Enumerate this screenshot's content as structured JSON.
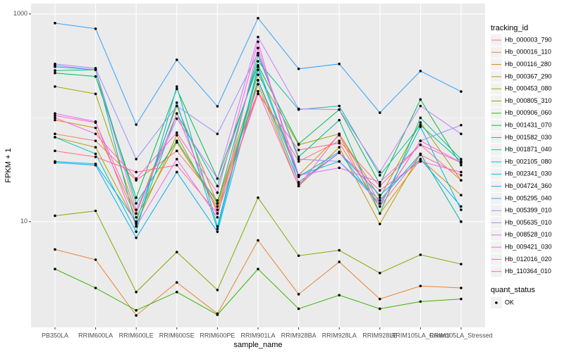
{
  "chart_data": {
    "type": "line",
    "x_label": "sample_name",
    "y_label": "FPKM + 1",
    "log_y": true,
    "grid": true,
    "ylim": [
      0.96,
      1260
    ],
    "yticks": [
      10,
      1000
    ],
    "y_minor_ticks": [
      100
    ],
    "legend_title": "tracking_id",
    "legend_position": "right",
    "point_color": "#000000",
    "point_legend_title": "quant_status",
    "point_legend_labels": [
      "OK"
    ],
    "categories": [
      "PB350LA",
      "RRIM600LA",
      "RRIM600LE",
      "RRIM600SE",
      "RRIM600PE",
      "RRIM901LA",
      "RRIM928BA",
      "RRIM928LA",
      "RRIM928LE",
      "RRIM105LA_Control",
      "RRIM105LA_Stressed"
    ],
    "series": [
      {
        "name": "Hb_000003_790",
        "color": "#F8766D",
        "values": [
          70,
          60,
          25,
          48,
          16,
          180,
          38,
          60,
          22,
          55,
          25
        ]
      },
      {
        "name": "Hb_000016_110",
        "color": "#EA8331",
        "values": [
          5.4,
          4.3,
          1.25,
          2.6,
          1.3,
          6.6,
          2.0,
          4.1,
          1.8,
          2.4,
          2.3
        ]
      },
      {
        "name": "Hb_000116_280",
        "color": "#D89000",
        "values": [
          95,
          80,
          11,
          58,
          14,
          230,
          28,
          68,
          12,
          40,
          18
        ]
      },
      {
        "name": "Hb_000367_290",
        "color": "#C09B00",
        "values": [
          65,
          52,
          9.5,
          68,
          13,
          210,
          22,
          52,
          9.5,
          45,
          10
        ]
      },
      {
        "name": "Hb_000453_080",
        "color": "#A3A500",
        "values": [
          200,
          170,
          12,
          130,
          15,
          260,
          55,
          70,
          17,
          90,
          25
        ]
      },
      {
        "name": "Hb_000805_310",
        "color": "#7CAE00",
        "values": [
          11.4,
          12.7,
          2.1,
          5.1,
          2.2,
          17,
          4.7,
          5.3,
          3.2,
          4.8,
          3.9
        ]
      },
      {
        "name": "Hb_000906_060",
        "color": "#39B600",
        "values": [
          3.5,
          2.3,
          1.4,
          2.1,
          1.27,
          3.5,
          1.45,
          1.96,
          1.45,
          1.7,
          1.8
        ]
      },
      {
        "name": "Hb_001431_070",
        "color": "#00BB4E",
        "values": [
          270,
          250,
          17,
          190,
          26,
          320,
          56,
          120,
          23,
          150,
          35
        ]
      },
      {
        "name": "Hb_001582_030",
        "color": "#00BF7D",
        "values": [
          285,
          290,
          15,
          60,
          15,
          400,
          42,
          95,
          12,
          100,
          40
        ]
      },
      {
        "name": "Hb_001871_040",
        "color": "#00C1A3",
        "values": [
          310,
          290,
          9,
          110,
          22,
          350,
          120,
          130,
          28,
          85,
          38
        ]
      },
      {
        "name": "Hb_002105_080",
        "color": "#00BFC4",
        "values": [
          65,
          45,
          8,
          200,
          9,
          310,
          28,
          38,
          16,
          45,
          10
        ]
      },
      {
        "name": "Hb_002341_030",
        "color": "#00BAE0",
        "values": [
          38,
          36,
          10,
          140,
          8.5,
          290,
          27,
          47,
          14,
          82,
          13
        ]
      },
      {
        "name": "Hb_004724_360",
        "color": "#00B0F6",
        "values": [
          37,
          35,
          7,
          30,
          8,
          230,
          24,
          46,
          18,
          40,
          14
        ]
      },
      {
        "name": "Hb_005295_040",
        "color": "#35A2FF",
        "values": [
          816,
          721,
          86,
          362,
          129,
          910,
          296,
          330,
          112,
          282,
          179
        ]
      },
      {
        "name": "Hb_005399_010",
        "color": "#9590FF",
        "values": [
          330,
          300,
          40,
          130,
          70,
          420,
          40,
          38,
          15,
          60,
          85
        ]
      },
      {
        "name": "Hb_005635_010",
        "color": "#C77CFF",
        "values": [
          320,
          290,
          13,
          98,
          26,
          600,
          122,
          120,
          30,
          130,
          70
        ]
      },
      {
        "name": "Hb_008528_010",
        "color": "#E76BF3",
        "values": [
          110,
          92,
          9,
          40,
          11,
          470,
          28,
          33,
          24,
          55,
          37
        ]
      },
      {
        "name": "Hb_009421_030",
        "color": "#FA62DB",
        "values": [
          100,
          70,
          26,
          72,
          19,
          540,
          23,
          46,
          20,
          38,
          30
        ]
      },
      {
        "name": "Hb_012016_020",
        "color": "#FF62BC",
        "values": [
          105,
          90,
          12,
          110,
          12,
          180,
          22,
          70,
          15,
          60,
          37
        ]
      },
      {
        "name": "Hb_110364_010",
        "color": "#FF6C91",
        "values": [
          48,
          42,
          30,
          35,
          12,
          170,
          49,
          57,
          14,
          44,
          28
        ]
      }
    ]
  }
}
